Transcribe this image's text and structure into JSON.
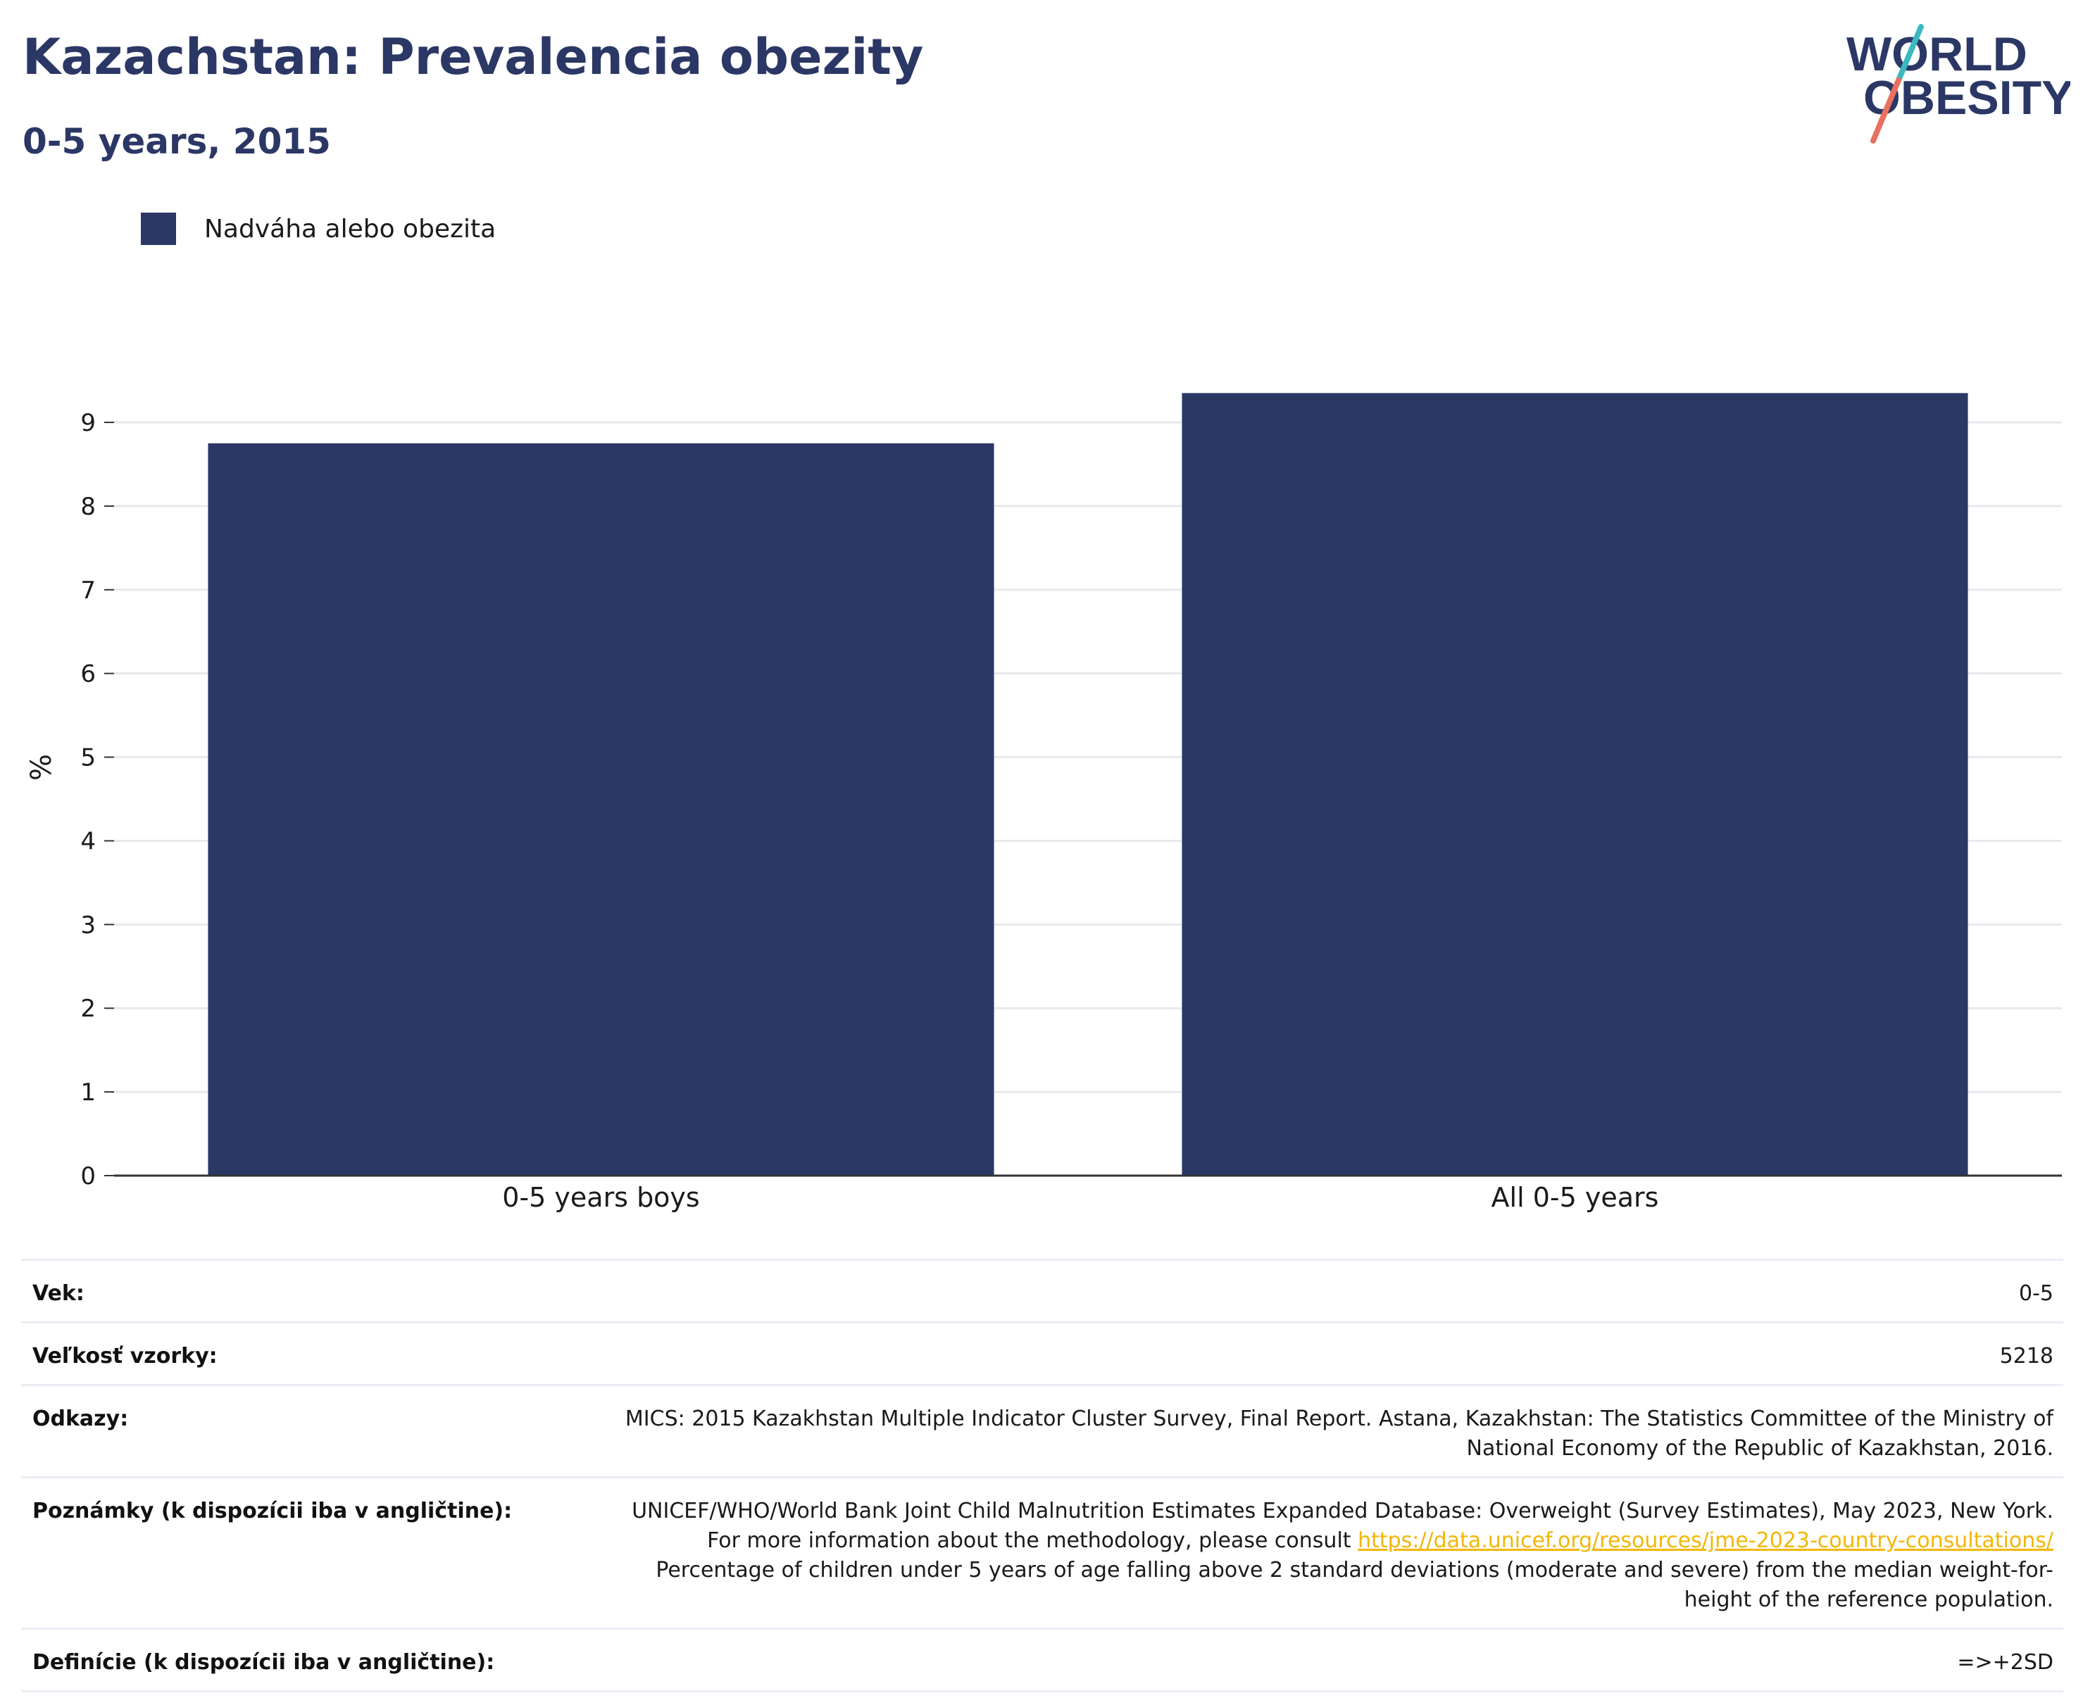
{
  "header": {
    "title": "Kazachstan: Prevalencia obezity",
    "subtitle": "0-5 years, 2015"
  },
  "logo": {
    "line1": "WORLD",
    "line2": "OBESITY",
    "colors": {
      "text": "#2b3765",
      "slash_top": "#3bb8c0",
      "slash_bottom": "#e8705e"
    }
  },
  "legend": {
    "label": "Nadváha alebo obezita",
    "color": "#2b3765"
  },
  "chart_data": {
    "type": "bar",
    "categories": [
      "0-5 years boys",
      "All 0-5 years"
    ],
    "series": [
      {
        "name": "Nadváha alebo obezita",
        "values": [
          8.75,
          9.35
        ],
        "color": "#2b3765"
      }
    ],
    "ylabel": "%",
    "ylim": [
      0,
      9.6
    ],
    "yticks": [
      "0",
      "1",
      "2",
      "3",
      "4",
      "5",
      "6",
      "7",
      "8",
      "9"
    ],
    "grid": true,
    "legend_position": "top-left"
  },
  "info": {
    "age": {
      "label": "Vek:",
      "value": "0-5"
    },
    "sample": {
      "label": "Veľkosť vzorky:",
      "value": "5218"
    },
    "references": {
      "label": "Odkazy:",
      "value": "MICS: 2015 Kazakhstan Multiple Indicator Cluster Survey, Final Report. Astana, Kazakhstan: The Statistics Committee of the Ministry of National Economy of the Republic of Kazakhstan, 2016."
    },
    "notes": {
      "label": "Poznámky (k dispozícii iba v angličtine):",
      "text_before": "UNICEF/WHO/World Bank Joint Child Malnutrition Estimates Expanded Database: Overweight (Survey Estimates), May 2023, New York. For more information about the methodology, please consult",
      "link": "https://data.unicef.org/resources/jme-2023-country-consultations/",
      "text_after": "Percentage of children under 5 years of age falling above 2 standard deviations (moderate and severe) from the median weight-for-height of the reference population."
    },
    "definitions": {
      "label": "Definície (k dispozícii iba v angličtine):",
      "value": "=>+2SD"
    }
  }
}
